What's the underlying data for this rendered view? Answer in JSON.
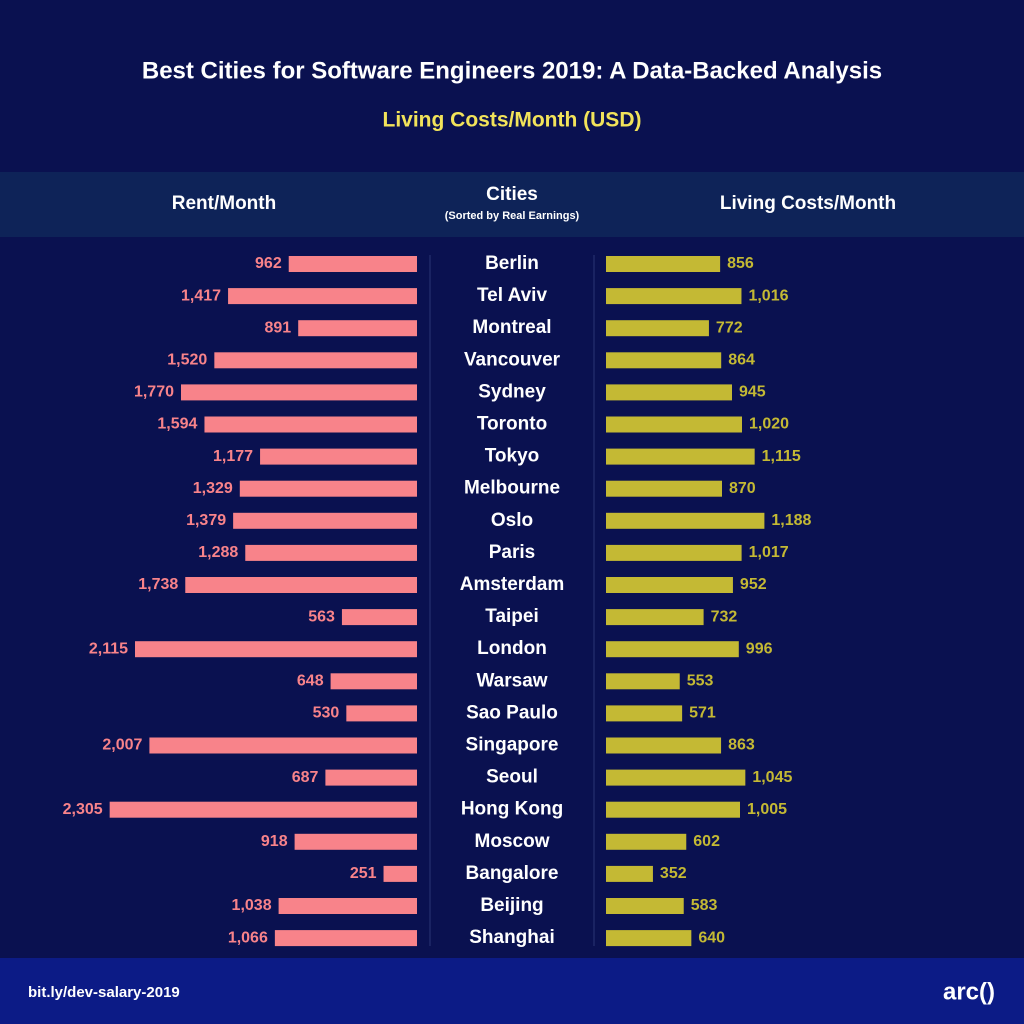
{
  "chart_data": {
    "type": "butterfly",
    "title": "Best Cities for Software Engineers 2019: A Data-Backed Analysis",
    "subtitle": "Living Costs/Month (USD)",
    "category_label": "Cities",
    "category_note": "(Sorted by Real Earnings)",
    "categories": [
      "Berlin",
      "Tel Aviv",
      "Montreal",
      "Vancouver",
      "Sydney",
      "Toronto",
      "Tokyo",
      "Melbourne",
      "Oslo",
      "Paris",
      "Amsterdam",
      "Taipei",
      "London",
      "Warsaw",
      "Sao Paulo",
      "Singapore",
      "Seoul",
      "Hong Kong",
      "Moscow",
      "Bangalore",
      "Beijing",
      "Shanghai"
    ],
    "xlim": [
      0,
      2400
    ],
    "series": [
      {
        "name": "Rent/Month",
        "color": "#f8838a",
        "values": [
          962,
          1417,
          891,
          1520,
          1770,
          1594,
          1177,
          1329,
          1379,
          1288,
          1738,
          563,
          2115,
          648,
          530,
          2007,
          687,
          2305,
          918,
          251,
          1038,
          1066
        ],
        "value_labels": [
          "962",
          "1,417",
          "891",
          "1,520",
          "1,770",
          "1,594",
          "1,177",
          "1,329",
          "1,379",
          "1,288",
          "1,738",
          "563",
          "2,115",
          "648",
          "530",
          "2,007",
          "687",
          "2,305",
          "918",
          "251",
          "1,038",
          "1,066"
        ]
      },
      {
        "name": "Living Costs/Month",
        "color": "#c4b934",
        "values": [
          856,
          1016,
          772,
          864,
          945,
          1020,
          1115,
          870,
          1188,
          1017,
          952,
          732,
          996,
          553,
          571,
          863,
          1045,
          1005,
          602,
          352,
          583,
          640
        ],
        "value_labels": [
          "856",
          "1,016",
          "772",
          "864",
          "945",
          "1,020",
          "1,115",
          "870",
          "1,188",
          "1,017",
          "952",
          "732",
          "996",
          "553",
          "571",
          "863",
          "1,045",
          "1,005",
          "602",
          "352",
          "583",
          "640"
        ]
      }
    ]
  },
  "footer": {
    "link": "bit.ly/dev-salary-2019",
    "logo": "arc()"
  }
}
